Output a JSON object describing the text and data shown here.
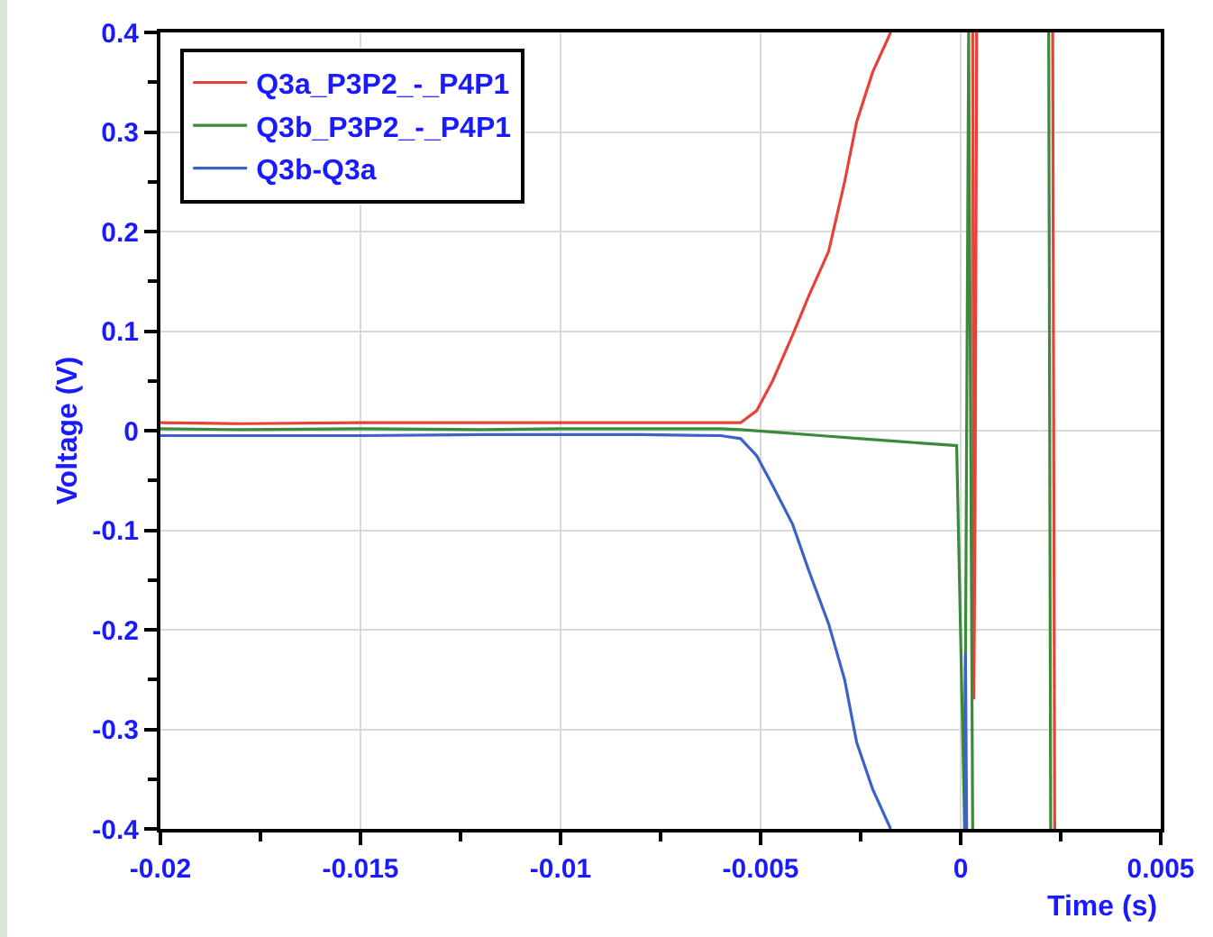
{
  "chart_data": {
    "type": "line",
    "xlabel": "Time (s)",
    "ylabel": "Voltage (V)",
    "xlim": [
      -0.02,
      0.005
    ],
    "ylim": [
      -0.4,
      0.4
    ],
    "xticks": [
      -0.02,
      {
        "value": -0.0175,
        "label": null
      },
      -0.015,
      {
        "value": -0.0125,
        "label": null
      },
      -0.01,
      {
        "value": -0.0075,
        "label": null
      },
      -0.005,
      {
        "value": -0.0025,
        "label": null
      },
      0,
      {
        "value": 0.0025,
        "label": null
      },
      0.005
    ],
    "yticks": [
      -0.4,
      {
        "value": -0.35,
        "label": null
      },
      -0.3,
      {
        "value": -0.25,
        "label": null
      },
      -0.2,
      {
        "value": -0.15,
        "label": null
      },
      -0.1,
      {
        "value": -0.05,
        "label": null
      },
      0,
      {
        "value": 0.05,
        "label": null
      },
      0.1,
      {
        "value": 0.15,
        "label": null
      },
      0.2,
      {
        "value": 0.25,
        "label": null
      },
      0.3,
      {
        "value": 0.35,
        "label": null
      },
      0.4
    ],
    "grid": true,
    "legend": "top left",
    "line_style": "solid",
    "marker": "none",
    "series": [
      {
        "name": "Q3a_P3P2_-_P4P1",
        "color": "#e8413a",
        "x": [
          -0.02,
          -0.018,
          -0.015,
          -0.012,
          -0.01,
          -0.008,
          -0.006,
          -0.0055,
          -0.0051,
          -0.0047,
          -0.0042,
          -0.0038,
          -0.0033,
          -0.0029,
          -0.0026,
          -0.0022,
          -0.00175,
          -0.001,
          0.0003,
          0.00033,
          0.00036,
          0.0004,
          0.001,
          0.0023,
          0.00235
        ],
        "values": [
          0.008,
          0.007,
          0.008,
          0.008,
          0.008,
          0.008,
          0.008,
          0.008,
          0.02,
          0.05,
          0.096,
          0.135,
          0.18,
          0.25,
          0.31,
          0.36,
          0.4,
          null,
          0.4,
          -0.27,
          -0.08,
          0.4,
          null,
          0.4,
          -0.4
        ]
      },
      {
        "name": "Q3b_P3P2_-_P4P1",
        "color": "#3a8a3a",
        "x": [
          -0.02,
          -0.018,
          -0.015,
          -0.012,
          -0.01,
          -0.008,
          -0.006,
          -0.0055,
          -0.0045,
          -0.0035,
          -0.0025,
          -0.0015,
          -0.0001,
          0.0001,
          0.0002,
          0.0003,
          0.001,
          0.0022,
          0.00225
        ],
        "values": [
          0.002,
          0.001,
          0.002,
          0.001,
          0.002,
          0.002,
          0.002,
          0.001,
          -0.002,
          -0.005,
          -0.008,
          -0.011,
          -0.015,
          -0.4,
          0.4,
          -0.4,
          null,
          0.4,
          -0.4
        ]
      },
      {
        "name": "Q3b-Q3a",
        "color": "#3a62c8",
        "x": [
          -0.02,
          -0.018,
          -0.015,
          -0.012,
          -0.01,
          -0.008,
          -0.006,
          -0.0055,
          -0.0051,
          -0.0047,
          -0.0042,
          -0.0038,
          -0.0033,
          -0.0029,
          -0.0026,
          -0.0022,
          -0.00175,
          -0.001,
          0.0001,
          0.00012,
          0.00015
        ],
        "values": [
          -0.005,
          -0.005,
          -0.005,
          -0.004,
          -0.004,
          -0.004,
          -0.005,
          -0.008,
          -0.025,
          -0.055,
          -0.094,
          -0.14,
          -0.194,
          -0.25,
          -0.313,
          -0.36,
          -0.4,
          null,
          -0.4,
          -0.224,
          -0.4
        ]
      }
    ]
  }
}
